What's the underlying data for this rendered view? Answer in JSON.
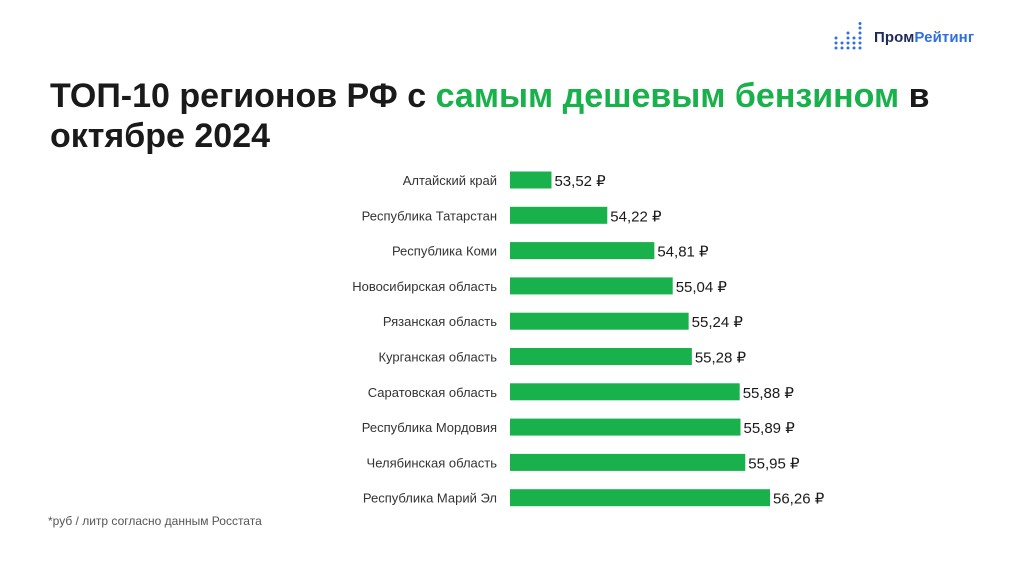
{
  "brand": {
    "name_part1": "Пром",
    "name_part2": "Рейтинг",
    "colors": {
      "dark": "#1e2a5a",
      "blue": "#2f6fe0"
    }
  },
  "title": {
    "part1": "ТОП-10 регионов РФ с ",
    "accent": "самым дешевым бензином",
    "part2": " в октябре 2024"
  },
  "footnote": "*руб / литр согласно данным Росстата",
  "colors": {
    "bar": "#19b14b",
    "text": "#1a1a1a",
    "accent": "#19b14b"
  },
  "chart_data": {
    "type": "bar",
    "orientation": "horizontal",
    "categories": [
      "Алтайский край",
      "Республика Татарстан",
      "Республика Коми",
      "Новосибирская область",
      "Рязанская область",
      "Курганская область",
      "Саратовская область",
      "Республика Мордовия",
      "Челябинская область",
      "Республика Марий Эл"
    ],
    "values": [
      53.52,
      54.22,
      54.81,
      55.04,
      55.24,
      55.28,
      55.88,
      55.89,
      55.95,
      56.26
    ],
    "value_labels": [
      "53,52 ₽",
      "54,22 ₽",
      "54,81 ₽",
      "55,04 ₽",
      "55,24 ₽",
      "55,28 ₽",
      "55,88 ₽",
      "55,89 ₽",
      "55,95 ₽",
      "56,26 ₽"
    ],
    "xlim": [
      53.0,
      56.26
    ],
    "grid": false,
    "legend": "none"
  }
}
